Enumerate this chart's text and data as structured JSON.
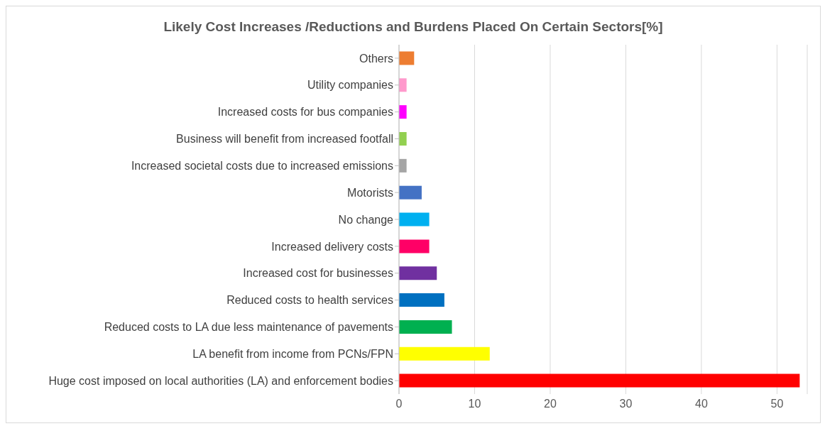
{
  "chart_data": {
    "type": "bar",
    "orientation": "horizontal",
    "title": "Likely Cost Increases /Reductions and Burdens Placed On Certain Sectors[%]",
    "categories": [
      "Others",
      "Utility companies",
      "Increased costs for bus companies",
      "Business will benefit from increased footfall",
      "Increased societal costs due to increased emissions",
      "Motorists",
      "No change",
      "Increased delivery costs",
      "Increased cost for businesses",
      "Reduced costs to health services",
      "Reduced costs to LA due less maintenance of pavements",
      "LA benefit from income from PCNs/FPN",
      "Huge cost imposed on local authorities (LA) and enforcement bodies"
    ],
    "values": [
      2,
      1,
      1,
      1,
      1,
      3,
      4,
      4,
      5,
      6,
      7,
      12,
      53
    ],
    "colors": [
      "#ed7d31",
      "#ff99cc",
      "#ff00ff",
      "#92d050",
      "#a5a5a5",
      "#4472c4",
      "#00b0f0",
      "#ff0066",
      "#7030a0",
      "#0070c0",
      "#00b050",
      "#ffff00",
      "#ff0000"
    ],
    "xlim": [
      0,
      54
    ],
    "xticks": [
      0,
      10,
      20,
      30,
      40,
      50
    ],
    "grid": "x",
    "legend": false
  }
}
